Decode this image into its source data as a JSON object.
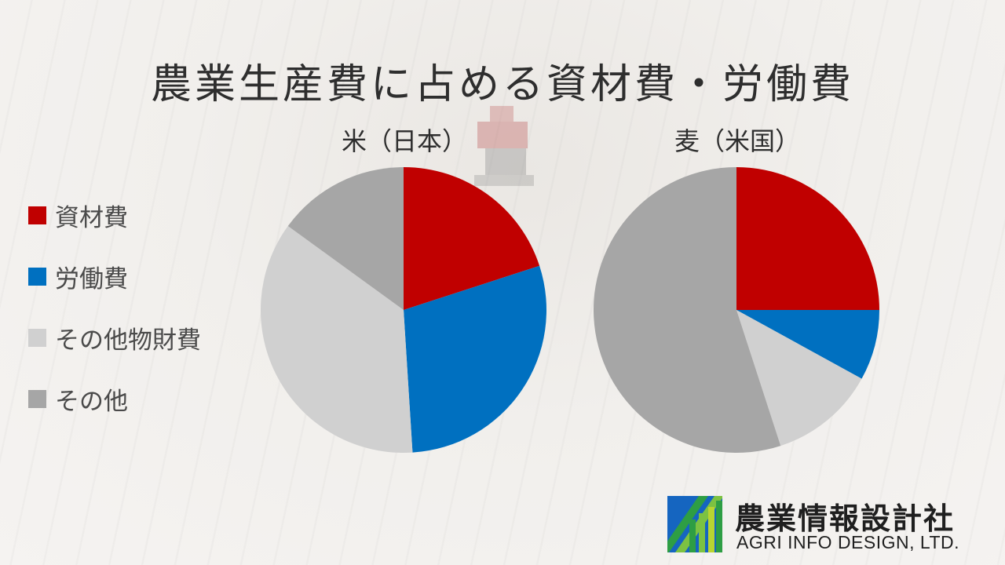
{
  "title": "農業生産費に占める資材費・労働費",
  "legend": {
    "items": [
      {
        "label": "資材費",
        "color": "#c00000"
      },
      {
        "label": "労働費",
        "color": "#0070c0"
      },
      {
        "label": "その他物財費",
        "color": "#d0d0d0"
      },
      {
        "label": "その他",
        "color": "#a6a6a6"
      }
    ]
  },
  "chart_data": [
    {
      "type": "pie",
      "title": "米（日本）",
      "categories": [
        "資材費",
        "労働費",
        "その他物財費",
        "その他"
      ],
      "values": [
        20,
        29,
        36,
        15
      ],
      "colors": [
        "#c00000",
        "#0070c0",
        "#d0d0d0",
        "#a6a6a6"
      ]
    },
    {
      "type": "pie",
      "title": "麦（米国）",
      "categories": [
        "資材費",
        "労働費",
        "その他物財費",
        "その他"
      ],
      "values": [
        25,
        8,
        12,
        55
      ],
      "colors": [
        "#c00000",
        "#0070c0",
        "#d0d0d0",
        "#a6a6a6"
      ]
    }
  ],
  "logo": {
    "name_jp": "農業情報設計社",
    "name_en": "AGRI INFO DESIGN, LTD."
  }
}
